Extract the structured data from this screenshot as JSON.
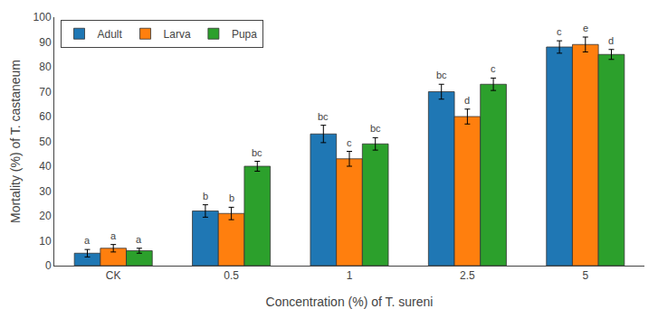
{
  "chart_data": {
    "type": "bar",
    "categories": [
      "CK",
      "0.5",
      "1",
      "2.5",
      "5"
    ],
    "series": [
      {
        "name": "Adult",
        "values": [
          5,
          22,
          53,
          70,
          88
        ],
        "errors": [
          1.5,
          2.5,
          3.5,
          3.0,
          2.5
        ],
        "annotations": [
          "a",
          "b",
          "bc",
          "bc",
          "c"
        ]
      },
      {
        "name": "Larva",
        "values": [
          7,
          21,
          43,
          60,
          89
        ],
        "errors": [
          1.5,
          2.5,
          3.0,
          3.0,
          3.0
        ],
        "annotations": [
          "a",
          "b",
          "c",
          "d",
          "e"
        ]
      },
      {
        "name": "Pupa",
        "values": [
          6,
          40,
          49,
          73,
          85
        ],
        "errors": [
          1.0,
          2.0,
          2.5,
          2.5,
          2.0
        ],
        "annotations": [
          "a",
          "bc",
          "bc",
          "c",
          "d"
        ]
      }
    ],
    "xlabel": "Concentration (%) of T. sureni",
    "ylabel": "Mortality (%) of T. castaneum",
    "ylim": [
      0,
      100
    ],
    "yticks": [
      0,
      10,
      20,
      30,
      40,
      50,
      60,
      70,
      80,
      90,
      100
    ],
    "legend": "upper left",
    "grid": false
  }
}
